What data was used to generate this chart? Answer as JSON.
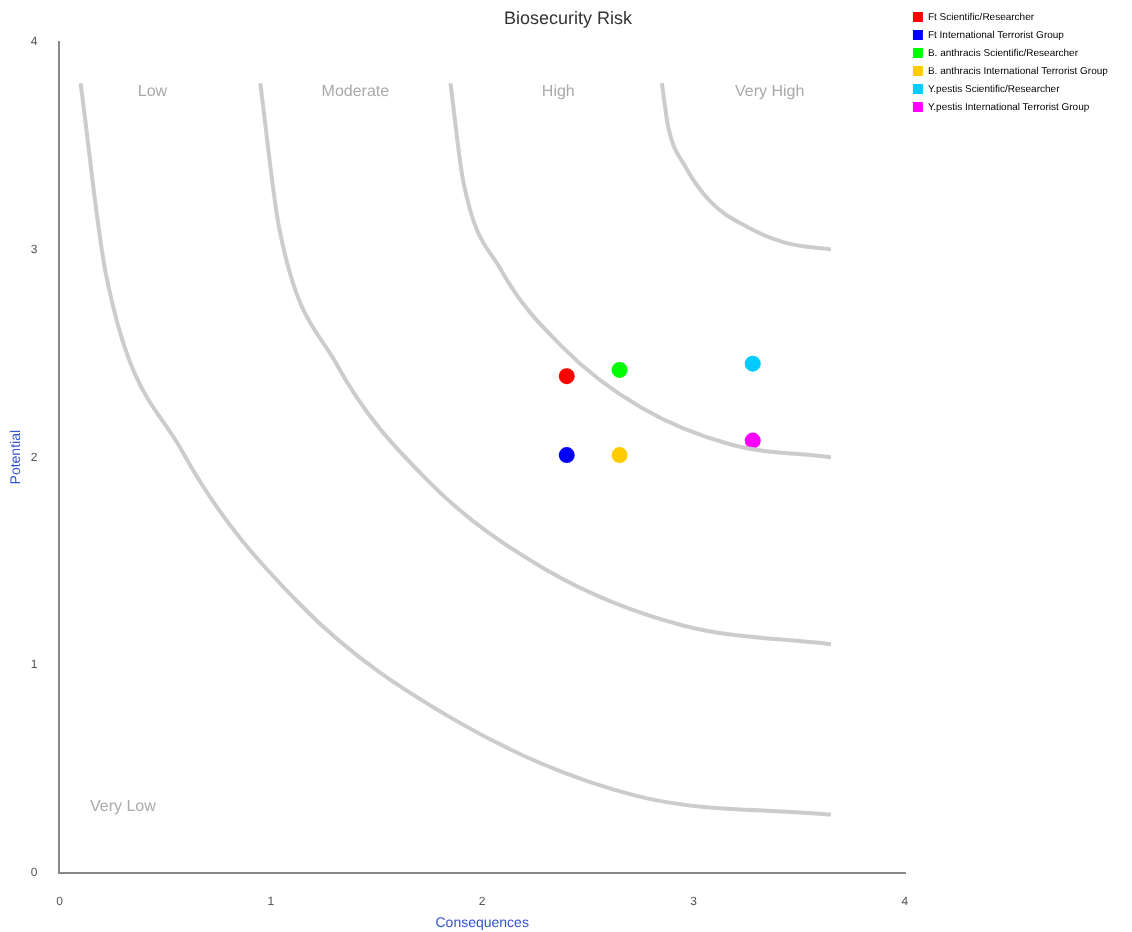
{
  "chart_data": {
    "type": "scatter",
    "title": "Biosecurity Risk",
    "xlabel": "Consequences",
    "ylabel": "Potential",
    "xlim": [
      0,
      4
    ],
    "xticks": [
      0,
      1,
      2,
      3,
      4
    ],
    "ylim": [
      0,
      4
    ],
    "yticks": [
      0,
      1,
      2,
      3,
      4
    ],
    "grid": false,
    "legend": "top right",
    "marker": "circle",
    "series": [
      {
        "type": "line",
        "marker": "none",
        "color": "#cccccc",
        "x": [
          0.1,
          0.22,
          0.58,
          1.14,
          1.88,
          2.73,
          3.65
        ],
        "values": [
          3.8,
          2.88,
          2.03,
          1.29,
          0.73,
          0.37,
          0.28
        ]
      },
      {
        "type": "line",
        "marker": "none",
        "color": "#cccccc",
        "x": [
          0.95,
          1.04,
          1.31,
          1.74,
          2.3,
          2.95,
          3.65
        ],
        "values": [
          3.8,
          3.1,
          2.45,
          1.89,
          1.46,
          1.19,
          1.1
        ]
      },
      {
        "type": "line",
        "marker": "none",
        "color": "#cccccc",
        "x": [
          1.85,
          1.91,
          2.09,
          2.38,
          2.75,
          3.18,
          3.65
        ],
        "values": [
          3.8,
          3.33,
          2.9,
          2.53,
          2.24,
          2.06,
          2.0
        ]
      },
      {
        "type": "line",
        "marker": "none",
        "color": "#cccccc",
        "x": [
          2.85,
          2.88,
          2.96,
          3.08,
          3.25,
          3.44,
          3.65
        ],
        "values": [
          3.8,
          3.59,
          3.4,
          3.23,
          3.11,
          3.03,
          3.0
        ]
      },
      {
        "name": "Ft Scientific/Researcher",
        "color": "#ff0000",
        "x": [
          2.4
        ],
        "values": [
          2.39
        ]
      },
      {
        "name": "Ft International Terrorist Group",
        "color": "#0000ff",
        "x": [
          2.4
        ],
        "values": [
          2.01
        ]
      },
      {
        "name": "B. anthracis Scientific/Researcher",
        "color": "#00ff00",
        "x": [
          2.65
        ],
        "values": [
          2.42
        ]
      },
      {
        "name": "B. anthracis International Terrorist Group",
        "color": "#ffcc00",
        "x": [
          2.65
        ],
        "values": [
          2.01
        ]
      },
      {
        "name": "Y.pestis Scientific/Researcher",
        "color": "#00ccff",
        "x": [
          3.28
        ],
        "values": [
          2.45
        ]
      },
      {
        "name": "Y.pestis International Terrorist Group",
        "color": "#ff00ff",
        "x": [
          3.28
        ],
        "values": [
          2.08
        ]
      }
    ],
    "annotations": [
      "Low",
      "Moderate",
      "High",
      "Very High",
      "Very Low"
    ]
  }
}
